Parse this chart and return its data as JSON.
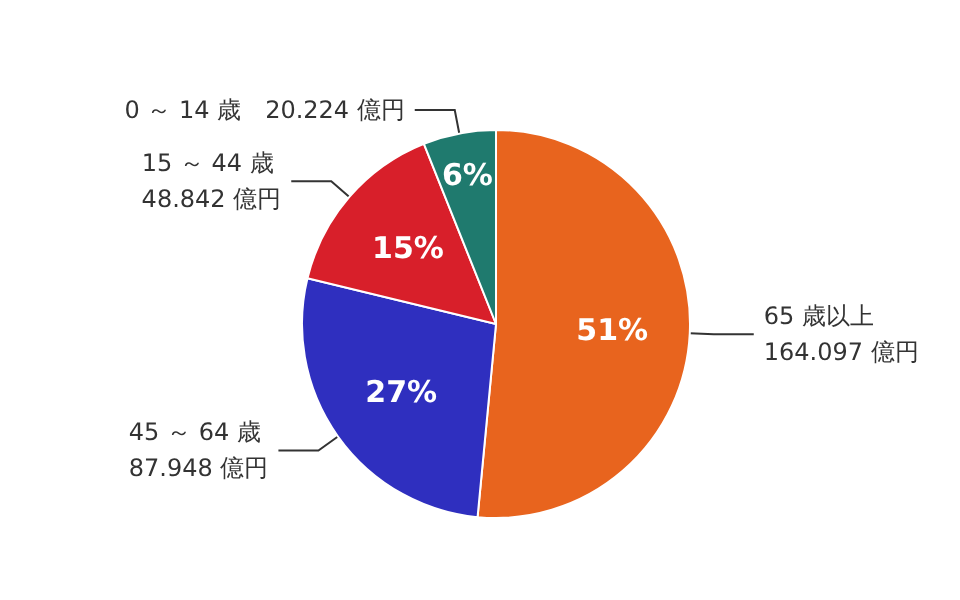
{
  "chart_data": {
    "type": "pie",
    "categories": [
      "65 歳以上 164.097 億円",
      "45 ～ 64 歳 87.948 億円",
      "15 ～ 44 歳 48.842 億円",
      "0 ～ 14 歳　20.224 億円"
    ],
    "values": [
      51,
      27,
      15,
      6
    ],
    "colors": [
      "#e8641e",
      "#2f2fbf",
      "#d81f2a",
      "#1f7a6e"
    ],
    "value_labels": [
      "51%",
      "27%",
      "15%",
      "6%"
    ]
  }
}
